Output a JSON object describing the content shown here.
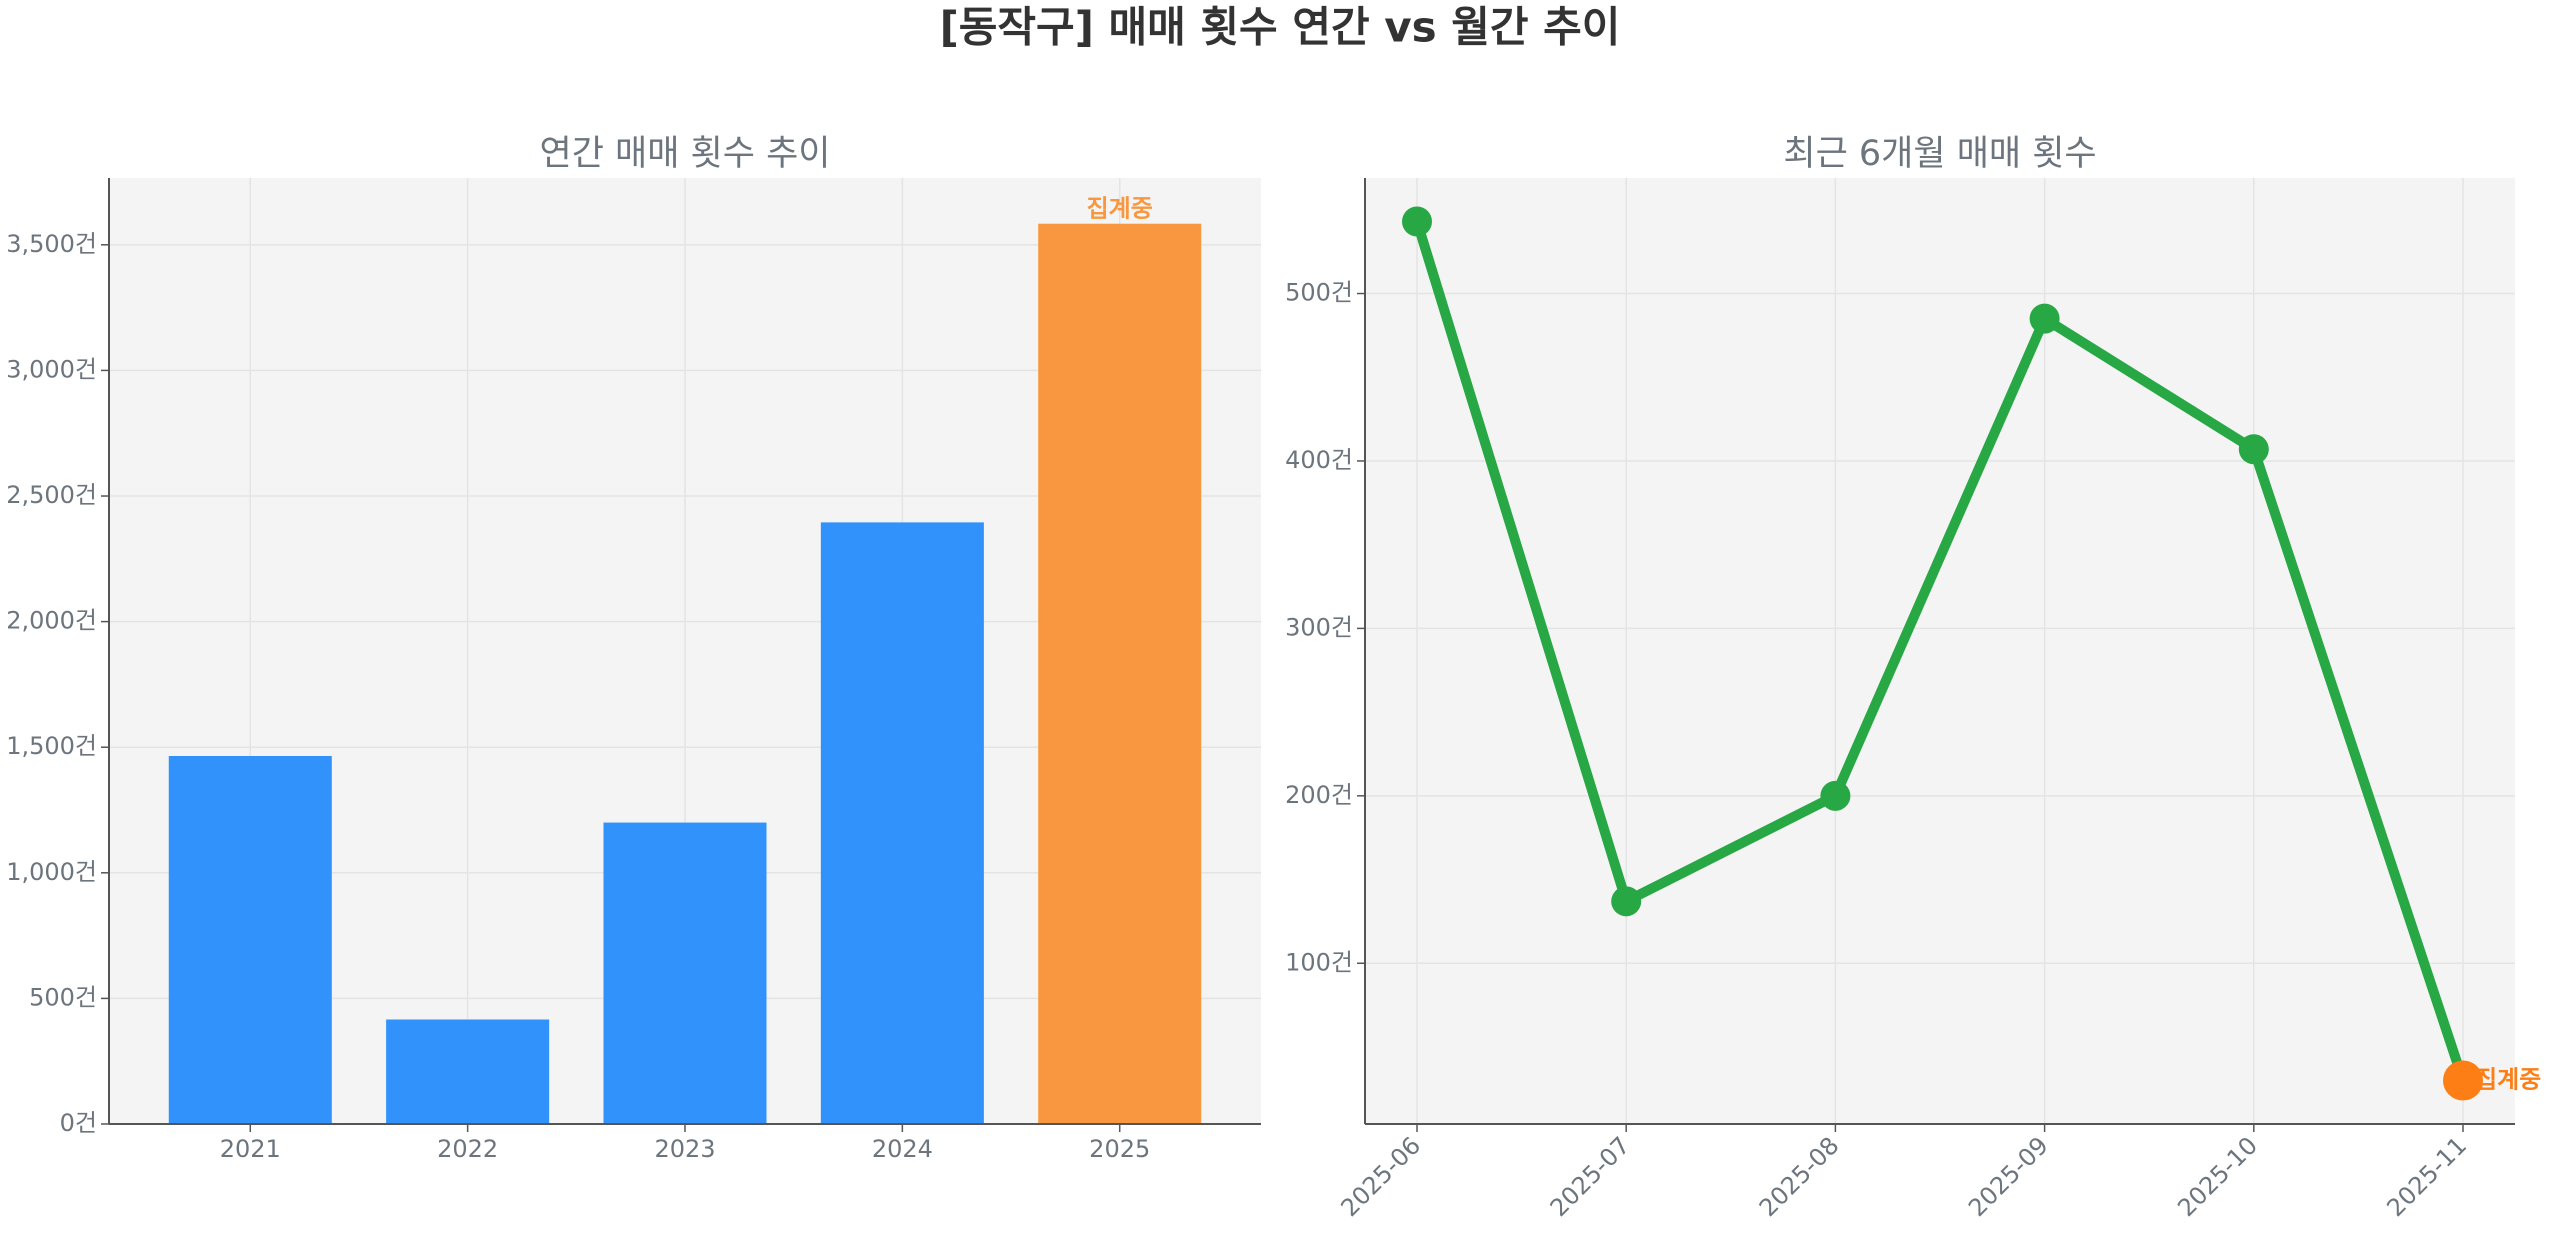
{
  "title": "[동작구] 매매 횟수 연간 vs 월간 추이",
  "chart_data": [
    {
      "type": "bar",
      "title": "연간 매매 횟수 추이",
      "categories": [
        "2021",
        "2022",
        "2023",
        "2024",
        "2025"
      ],
      "values": [
        1465,
        416,
        1200,
        2395,
        3584
      ],
      "color": "#3192fc",
      "highlight": {
        "category": "2025",
        "label": "집계중",
        "color": "#f89740"
      },
      "ylim": [
        0,
        3766
      ],
      "yticks": [
        {
          "value": 0,
          "label": "0건"
        },
        {
          "value": 500,
          "label": "500건"
        },
        {
          "value": 1000,
          "label": "1,000건"
        },
        {
          "value": 1500,
          "label": "1,500건"
        },
        {
          "value": 2000,
          "label": "2,000건"
        },
        {
          "value": 2500,
          "label": "2,500건"
        },
        {
          "value": 3000,
          "label": "3,000건"
        },
        {
          "value": 3500,
          "label": "3,500건"
        }
      ],
      "grid": true
    },
    {
      "type": "line",
      "title": "최근 6개월 매매 횟수",
      "categories": [
        "2025-06",
        "2025-07",
        "2025-08",
        "2025-09",
        "2025-10",
        "2025-11"
      ],
      "values": [
        543,
        137,
        200,
        485,
        407,
        30
      ],
      "color": "#28a745",
      "highlight": {
        "category": "2025-11",
        "label": "집계중",
        "color": "#fd7e14"
      },
      "ylim": [
        4,
        569
      ],
      "yticks": [
        {
          "value": 100,
          "label": "100건"
        },
        {
          "value": 200,
          "label": "200건"
        },
        {
          "value": 300,
          "label": "300건"
        },
        {
          "value": 400,
          "label": "400건"
        },
        {
          "value": 500,
          "label": "500건"
        }
      ],
      "grid": true
    }
  ]
}
